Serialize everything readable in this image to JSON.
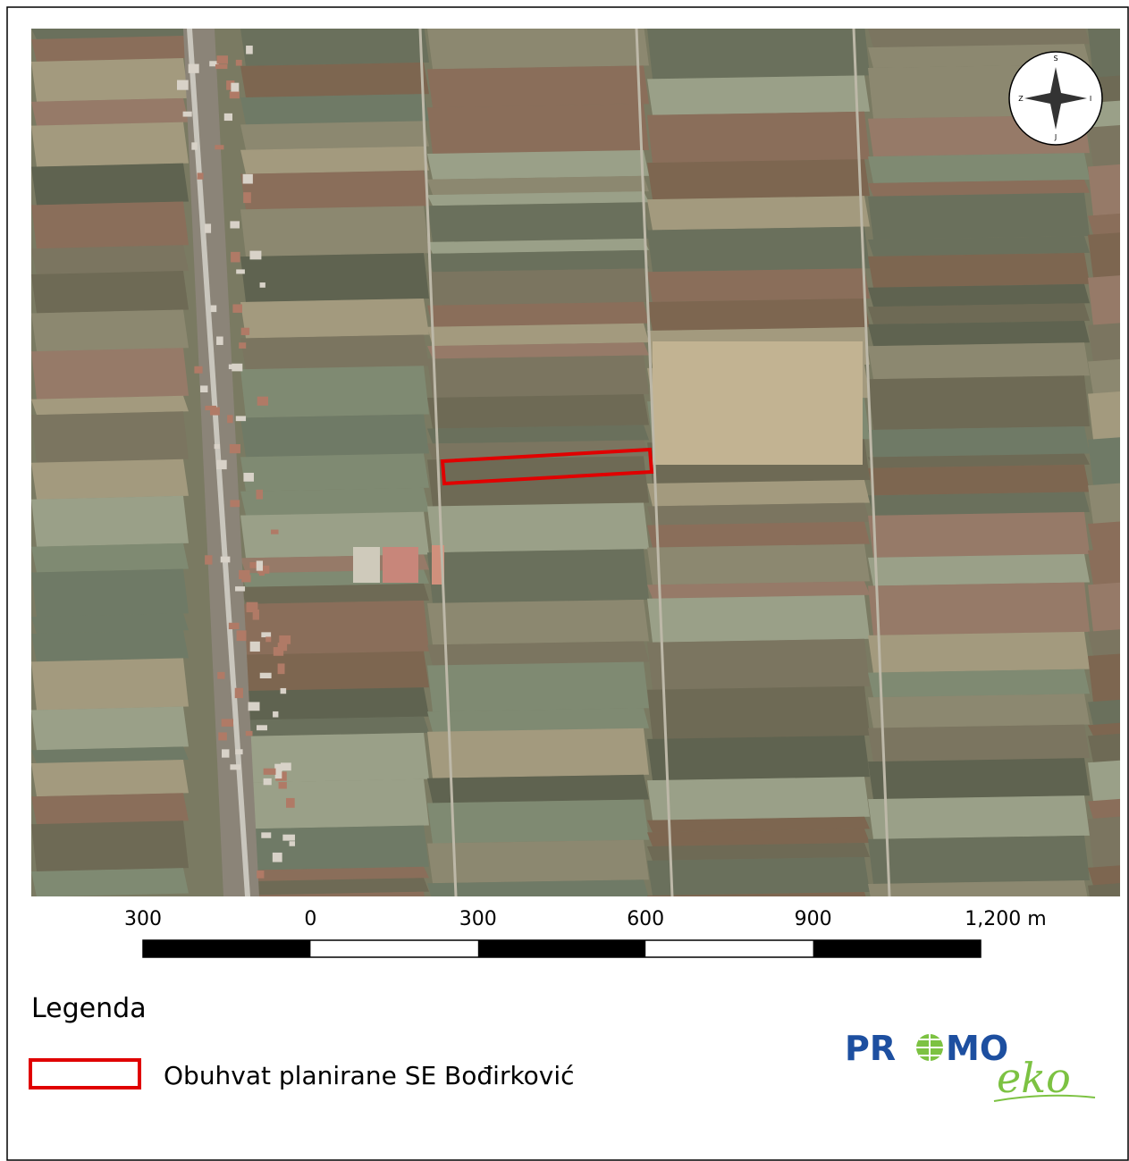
{
  "map": {
    "compass": {
      "north": "S",
      "west": "Z",
      "east": "I",
      "south": "J"
    },
    "scale_bar": {
      "labels": [
        "300",
        "0",
        "300",
        "600",
        "900",
        "1,200 m"
      ]
    },
    "legend": {
      "title": "Legenda",
      "items": [
        {
          "label": "Obuhvat planirane SE Bođirković"
        }
      ]
    },
    "logo": {
      "parts": [
        "PR",
        "MO"
      ],
      "secondary": "eko"
    }
  }
}
